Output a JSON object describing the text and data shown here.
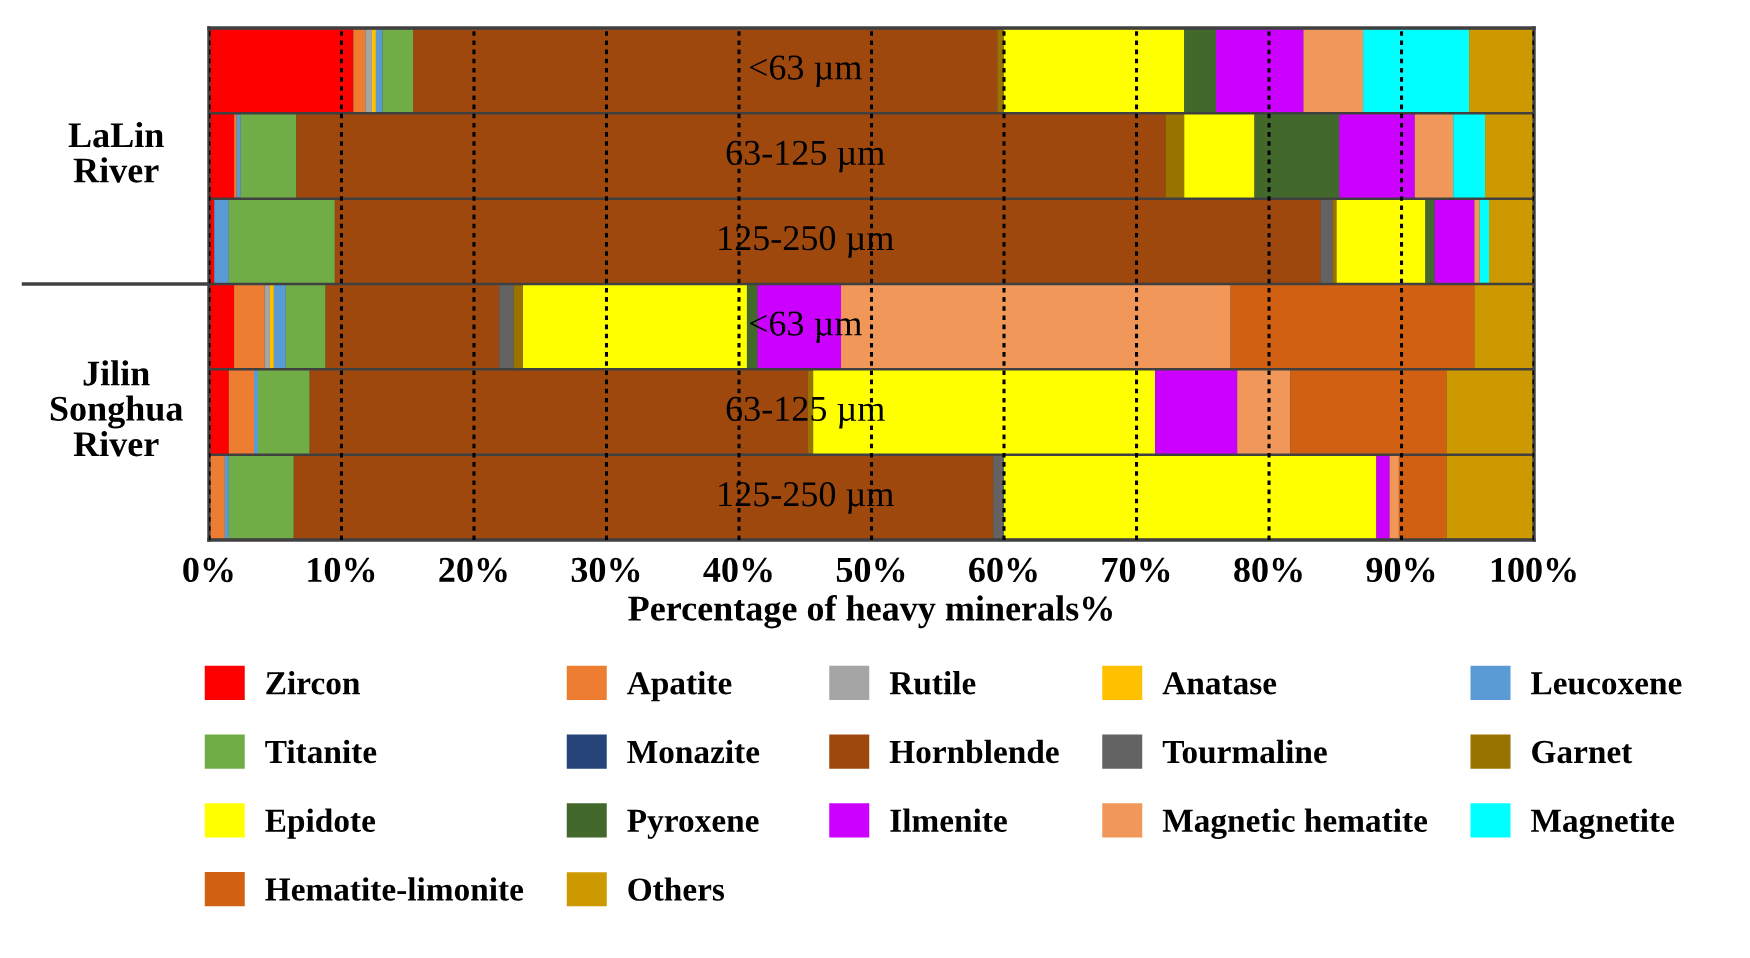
{
  "chart_data": {
    "type": "bar",
    "orientation": "horizontal",
    "stacked": true,
    "categories": [
      "<63 µm",
      "63-125 µm",
      "125-250 µm",
      "<63 µm",
      "63-125 µm",
      "125-250 µm"
    ],
    "annotations": [
      "LaLin River",
      "Jilin Songhua River"
    ],
    "xlabel": "Percentage of heavy minerals%",
    "xlim": [
      0,
      100
    ],
    "xticks": [
      {
        "value": 0,
        "label": "0%"
      },
      {
        "value": 10,
        "label": "10%"
      },
      {
        "value": 20,
        "label": "20%"
      },
      {
        "value": 30,
        "label": "30%"
      },
      {
        "value": 40,
        "label": "40%"
      },
      {
        "value": 50,
        "label": "50%"
      },
      {
        "value": 60,
        "label": "60%"
      },
      {
        "value": 70,
        "label": "70%"
      },
      {
        "value": 80,
        "label": "80%"
      },
      {
        "value": 90,
        "label": "90%"
      },
      {
        "value": 100,
        "label": "100%"
      }
    ],
    "grid": "x",
    "legend": "bottom",
    "series": [
      {
        "name": "Zircon",
        "color": "#ff0000",
        "values": [
          10.9,
          1.9,
          0.4,
          1.9,
          1.5,
          0
        ]
      },
      {
        "name": "Apatite",
        "color": "#ed7d31",
        "values": [
          0.9,
          0.2,
          0,
          2.3,
          1.9,
          1.2
        ]
      },
      {
        "name": "Rutile",
        "color": "#a5a5a5",
        "values": [
          0.5,
          0,
          0,
          0.4,
          0,
          0
        ]
      },
      {
        "name": "Anatase",
        "color": "#ffc000",
        "values": [
          0.3,
          0,
          0,
          0.3,
          0,
          0
        ]
      },
      {
        "name": "Leucoxene",
        "color": "#5b9bd5",
        "values": [
          0.5,
          0.3,
          1.1,
          0.9,
          0.3,
          0.3
        ]
      },
      {
        "name": "Titanite",
        "color": "#70ad47",
        "values": [
          2.3,
          4.2,
          8.0,
          3.0,
          3.9,
          4.9
        ]
      },
      {
        "name": "Monazite",
        "color": "#264478",
        "values": [
          0,
          0,
          0,
          0,
          0,
          0
        ]
      },
      {
        "name": "Hornblende",
        "color": "#9e480e",
        "values": [
          44.1,
          65.6,
          74.4,
          13.1,
          37.6,
          52.8
        ]
      },
      {
        "name": "Tourmaline",
        "color": "#636363",
        "values": [
          0,
          0,
          0.9,
          1.1,
          0,
          0.8
        ]
      },
      {
        "name": "Garnet",
        "color": "#997300",
        "values": [
          0.5,
          1.4,
          0.3,
          0.7,
          0.4,
          0
        ]
      },
      {
        "name": "Epidote",
        "color": "#ffff00",
        "values": [
          13.6,
          5.3,
          6.7,
          16.9,
          25.8,
          28.1
        ]
      },
      {
        "name": "Pyroxene",
        "color": "#43682b",
        "values": [
          2.4,
          6.4,
          0.7,
          0.8,
          0,
          0
        ]
      },
      {
        "name": "Ilmenite",
        "color": "#cc00ff",
        "values": [
          6.6,
          5.7,
          3.0,
          6.3,
          6.2,
          1.0
        ]
      },
      {
        "name": "Magnetic hematite",
        "color": "#f1975a",
        "values": [
          4.5,
          2.9,
          0.4,
          29.4,
          4.0,
          0.7
        ]
      },
      {
        "name": "Magnetite",
        "color": "#00ffff",
        "values": [
          8.0,
          2.4,
          0.7,
          0,
          0,
          0
        ]
      },
      {
        "name": "Hematite-limonite",
        "color": "#d26012",
        "values": [
          0,
          0,
          0,
          18.4,
          11.8,
          3.6
        ]
      },
      {
        "name": "Others",
        "color": "#cc9900",
        "values": [
          4.9,
          3.7,
          3.4,
          4.5,
          6.6,
          6.6
        ]
      }
    ]
  }
}
